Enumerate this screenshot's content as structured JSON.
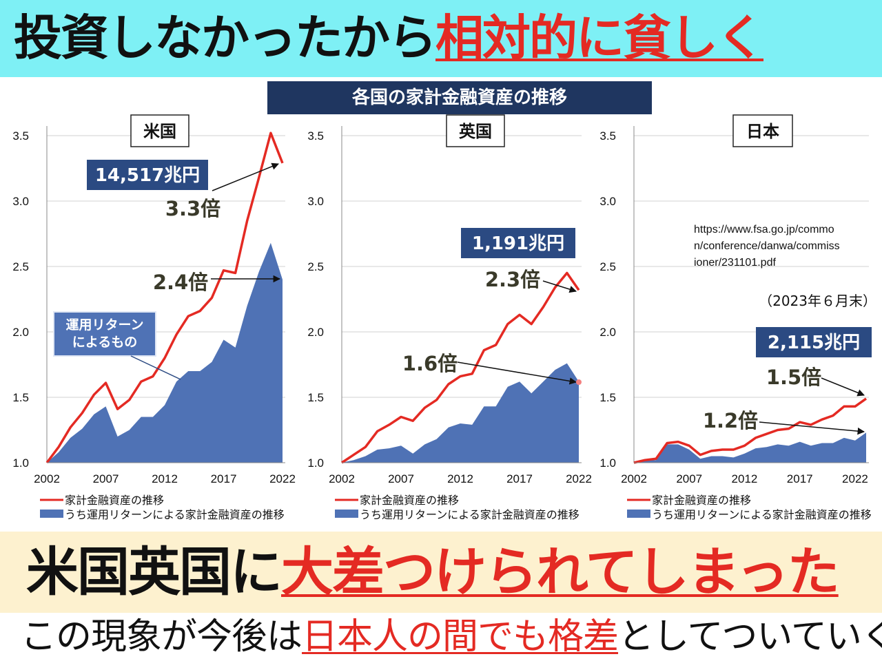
{
  "header": {
    "title_black": "投資しなかったから",
    "title_red": "相対的に貧しく"
  },
  "chart_header": "各国の家計金融資産の推移",
  "source": {
    "url_lines": [
      "https://www.fsa.go.jp/commo",
      "n/conference/danwa/commiss",
      "ioner/231101.pdf"
    ],
    "date_note": "（2023年６月末）"
  },
  "legend": {
    "line_label": "家計金融資産の推移",
    "area_label": "うち運用リターンによる家計金融資産の推移"
  },
  "colors": {
    "line": "#e42a23",
    "area": "#4f72b5",
    "box": "#2b4a82",
    "accent": "#e42a23"
  },
  "chart_data": [
    {
      "type": "line+area",
      "title": "米国",
      "x": [
        2002,
        2003,
        2004,
        2005,
        2006,
        2007,
        2008,
        2009,
        2010,
        2011,
        2012,
        2013,
        2014,
        2015,
        2016,
        2017,
        2018,
        2019,
        2020,
        2021,
        2022
      ],
      "xticks": [
        2002,
        2007,
        2012,
        2017,
        2022
      ],
      "yticks": [
        "1.0",
        "1.5",
        "2.0",
        "2.5",
        "3.0",
        "3.5"
      ],
      "ylim": [
        1.0,
        3.5
      ],
      "series": [
        {
          "name": "家計金融資産の推移",
          "kind": "line",
          "values": [
            1.0,
            1.12,
            1.27,
            1.38,
            1.52,
            1.61,
            1.41,
            1.48,
            1.62,
            1.66,
            1.8,
            1.98,
            2.12,
            2.16,
            2.26,
            2.47,
            2.45,
            2.85,
            3.18,
            3.52,
            3.29
          ]
        },
        {
          "name": "うち運用リターンによる家計金融資産の推移",
          "kind": "area",
          "values": [
            1.0,
            1.08,
            1.19,
            1.26,
            1.37,
            1.43,
            1.2,
            1.25,
            1.35,
            1.35,
            1.44,
            1.62,
            1.7,
            1.7,
            1.77,
            1.94,
            1.88,
            2.2,
            2.46,
            2.68,
            2.4
          ]
        }
      ],
      "value_label": "14,517兆円",
      "annotations": [
        "3.3倍",
        "2.4倍"
      ],
      "callout": "運用リターン\nによるもの"
    },
    {
      "type": "line+area",
      "title": "英国",
      "x": [
        2002,
        2003,
        2004,
        2005,
        2006,
        2007,
        2008,
        2009,
        2010,
        2011,
        2012,
        2013,
        2014,
        2015,
        2016,
        2017,
        2018,
        2019,
        2020,
        2021,
        2022
      ],
      "xticks": [
        2002,
        2007,
        2012,
        2017,
        2022
      ],
      "yticks": [
        "1.0",
        "1.5",
        "2.0",
        "2.5",
        "3.0",
        "3.5"
      ],
      "ylim": [
        1.0,
        3.5
      ],
      "series": [
        {
          "name": "家計金融資産の推移",
          "kind": "line",
          "values": [
            1.0,
            1.06,
            1.12,
            1.24,
            1.29,
            1.35,
            1.32,
            1.42,
            1.48,
            1.6,
            1.66,
            1.68,
            1.86,
            1.9,
            2.06,
            2.13,
            2.06,
            2.19,
            2.34,
            2.45,
            2.32
          ]
        },
        {
          "name": "うち運用リターンによる家計金融資産の推移",
          "kind": "area",
          "values": [
            1.0,
            1.02,
            1.05,
            1.1,
            1.11,
            1.13,
            1.07,
            1.14,
            1.18,
            1.27,
            1.3,
            1.29,
            1.43,
            1.43,
            1.58,
            1.62,
            1.53,
            1.62,
            1.71,
            1.76,
            1.62
          ]
        }
      ],
      "value_label": "1,191兆円",
      "annotations": [
        "2.3倍",
        "1.6倍"
      ]
    },
    {
      "type": "line+area",
      "title": "日本",
      "x": [
        2002,
        2003,
        2004,
        2005,
        2006,
        2007,
        2008,
        2009,
        2010,
        2011,
        2012,
        2013,
        2014,
        2015,
        2016,
        2017,
        2018,
        2019,
        2020,
        2021,
        2022,
        2023
      ],
      "xticks": [
        2002,
        2007,
        2012,
        2017,
        2022
      ],
      "yticks": [
        "1.0",
        "1.5",
        "2.0",
        "2.5",
        "3.0",
        "3.5"
      ],
      "ylim": [
        1.0,
        3.5
      ],
      "series": [
        {
          "name": "家計金融資産の推移",
          "kind": "line",
          "values": [
            1.0,
            1.02,
            1.03,
            1.15,
            1.16,
            1.13,
            1.06,
            1.09,
            1.1,
            1.1,
            1.13,
            1.19,
            1.22,
            1.25,
            1.26,
            1.31,
            1.29,
            1.33,
            1.36,
            1.43,
            1.43,
            1.49
          ]
        },
        {
          "name": "うち運用リターンによる家計金融資産の推移",
          "kind": "area",
          "values": [
            1.0,
            1.02,
            1.02,
            1.14,
            1.14,
            1.1,
            1.03,
            1.05,
            1.05,
            1.04,
            1.07,
            1.11,
            1.12,
            1.14,
            1.13,
            1.16,
            1.13,
            1.15,
            1.15,
            1.19,
            1.17,
            1.23
          ]
        }
      ],
      "value_label": "2,115兆円",
      "annotations": [
        "1.5倍",
        "1.2倍"
      ]
    }
  ],
  "mid_banner": {
    "black": "米国英国に",
    "red": "大差つけられてしまった"
  },
  "bottom": {
    "part1": "この現象が今後は",
    "red": "日本人の間でも格差",
    "part2": "としてついていく"
  }
}
